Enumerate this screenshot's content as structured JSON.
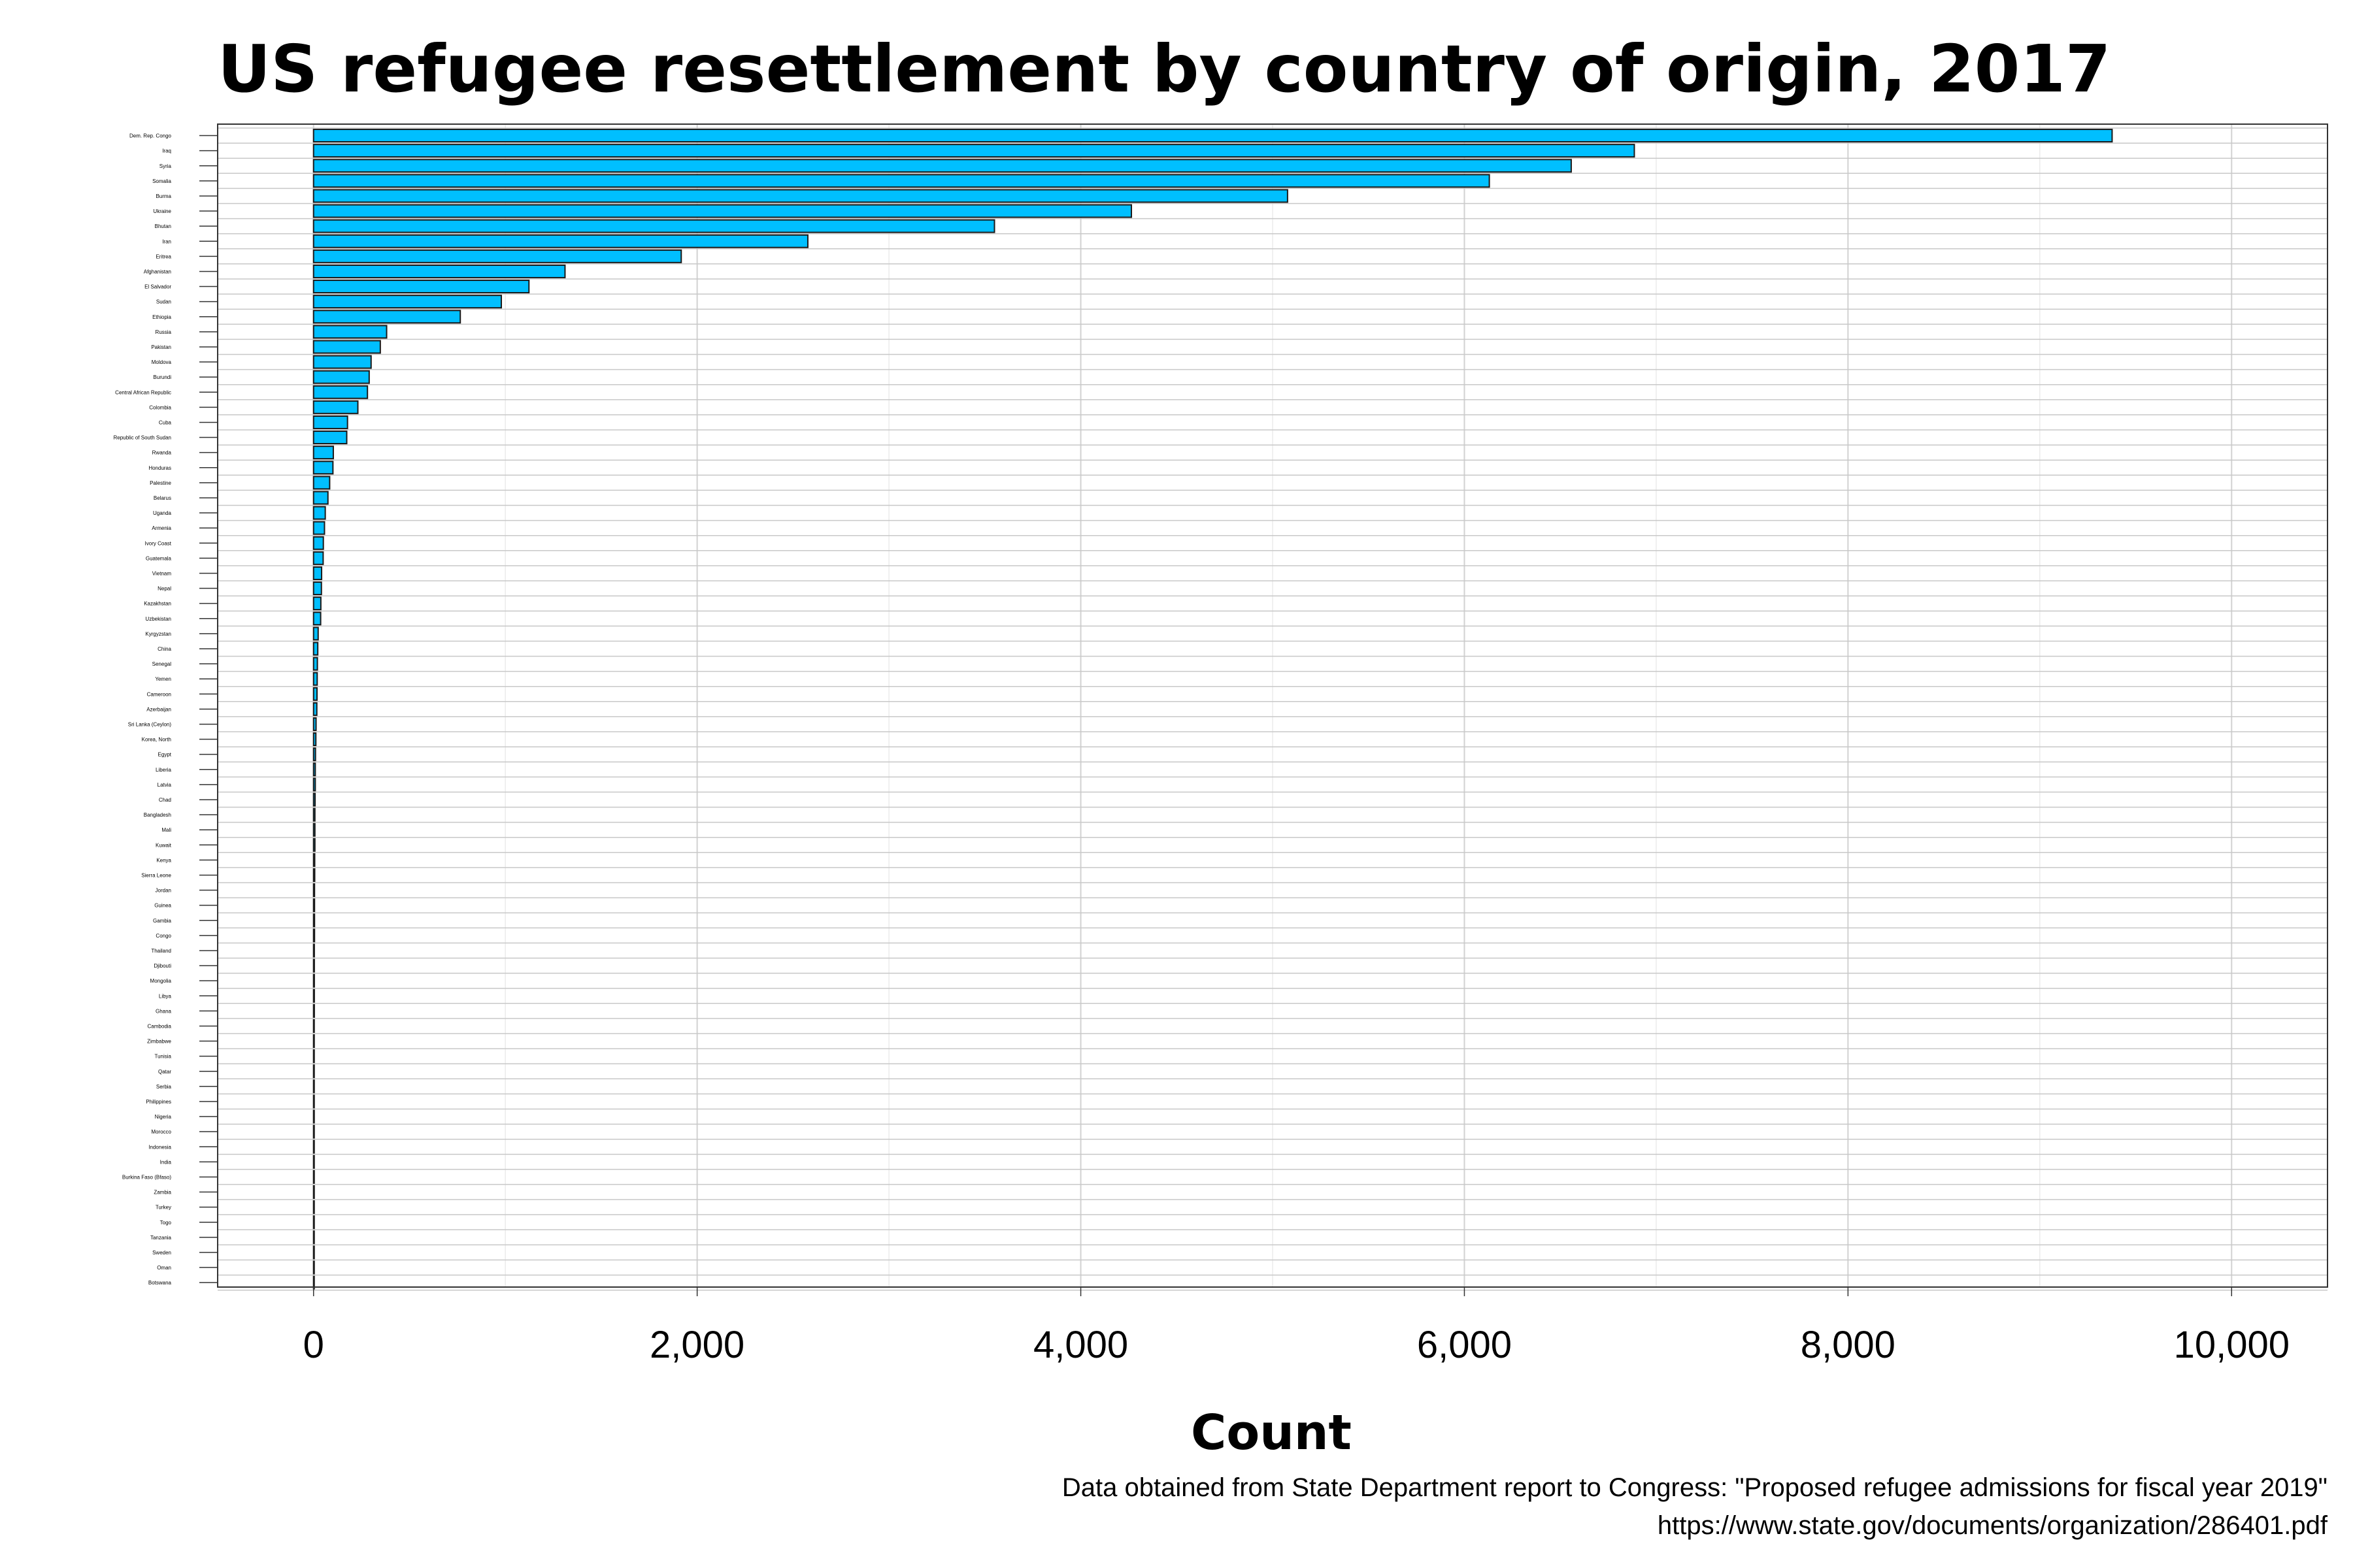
{
  "chart_data": {
    "type": "bar",
    "orientation": "horizontal",
    "title": "US refugee resettlement by country of origin, 2017",
    "xlabel": "Count",
    "ylabel": "",
    "caption_line1": "Data obtained from State Department report to Congress: \"Proposed refugee admissions for fiscal year 2019\"",
    "caption_line2": "https://www.state.gov/documents/organization/286401.pdf",
    "xlim": [
      -500,
      10500
    ],
    "xticks": [
      0,
      2000,
      4000,
      6000,
      8000,
      10000
    ],
    "xtick_labels": [
      "0",
      "2,000",
      "4,000",
      "6,000",
      "8,000",
      "10,000"
    ],
    "grid": true,
    "bar_color": "#00bfff",
    "categories": [
      "Dem. Rep. Congo",
      "Iraq",
      "Syria",
      "Somalia",
      "Burma",
      "Ukraine",
      "Bhutan",
      "Iran",
      "Eritrea",
      "Afghanistan",
      "El Salvador",
      "Sudan",
      "Ethiopia",
      "Russia",
      "Pakistan",
      "Moldova",
      "Burundi",
      "Central African Republic",
      "Colombia",
      "Cuba",
      "Republic of South Sudan",
      "Rwanda",
      "Honduras",
      "Palestine",
      "Belarus",
      "Uganda",
      "Armenia",
      "Ivory Coast",
      "Guatemala",
      "Vietnam",
      "Nepal",
      "Kazakhstan",
      "Uzbekistan",
      "Kyrgyzstan",
      "China",
      "Senegal",
      "Yemen",
      "Cameroon",
      "Azerbaijan",
      "Sri Lanka (Ceylon)",
      "Korea, North",
      "Egypt",
      "Liberia",
      "Latvia",
      "Chad",
      "Bangladesh",
      "Mali",
      "Kuwait",
      "Kenya",
      "Sierra Leone",
      "Jordan",
      "Guinea",
      "Gambia",
      "Congo",
      "Thailand",
      "Djibouti",
      "Mongolia",
      "Libya",
      "Ghana",
      "Cambodia",
      "Zimbabwe",
      "Tunisia",
      "Qatar",
      "Serbia",
      "Philippines",
      "Nigeria",
      "Morocco",
      "Indonesia",
      "India",
      "Burkina Faso (Bfaso)",
      "Zambia",
      "Turkey",
      "Togo",
      "Tanzania",
      "Sweden",
      "Oman",
      "Botswana"
    ],
    "values": [
      9377,
      6886,
      6557,
      6130,
      5078,
      4264,
      3550,
      2577,
      1917,
      1311,
      1123,
      979,
      765,
      381,
      348,
      300,
      290,
      281,
      231,
      177,
      173,
      103,
      101,
      84,
      75,
      61,
      57,
      51,
      50,
      42,
      41,
      38,
      37,
      24,
      22,
      20,
      19,
      18,
      17,
      13,
      12,
      10,
      9,
      9,
      8,
      7,
      7,
      7,
      6,
      6,
      5,
      5,
      5,
      5,
      4,
      4,
      4,
      4,
      4,
      3,
      3,
      3,
      3,
      3,
      3,
      3,
      3,
      3,
      3,
      3,
      2,
      2,
      2,
      2,
      2,
      2,
      2
    ]
  }
}
